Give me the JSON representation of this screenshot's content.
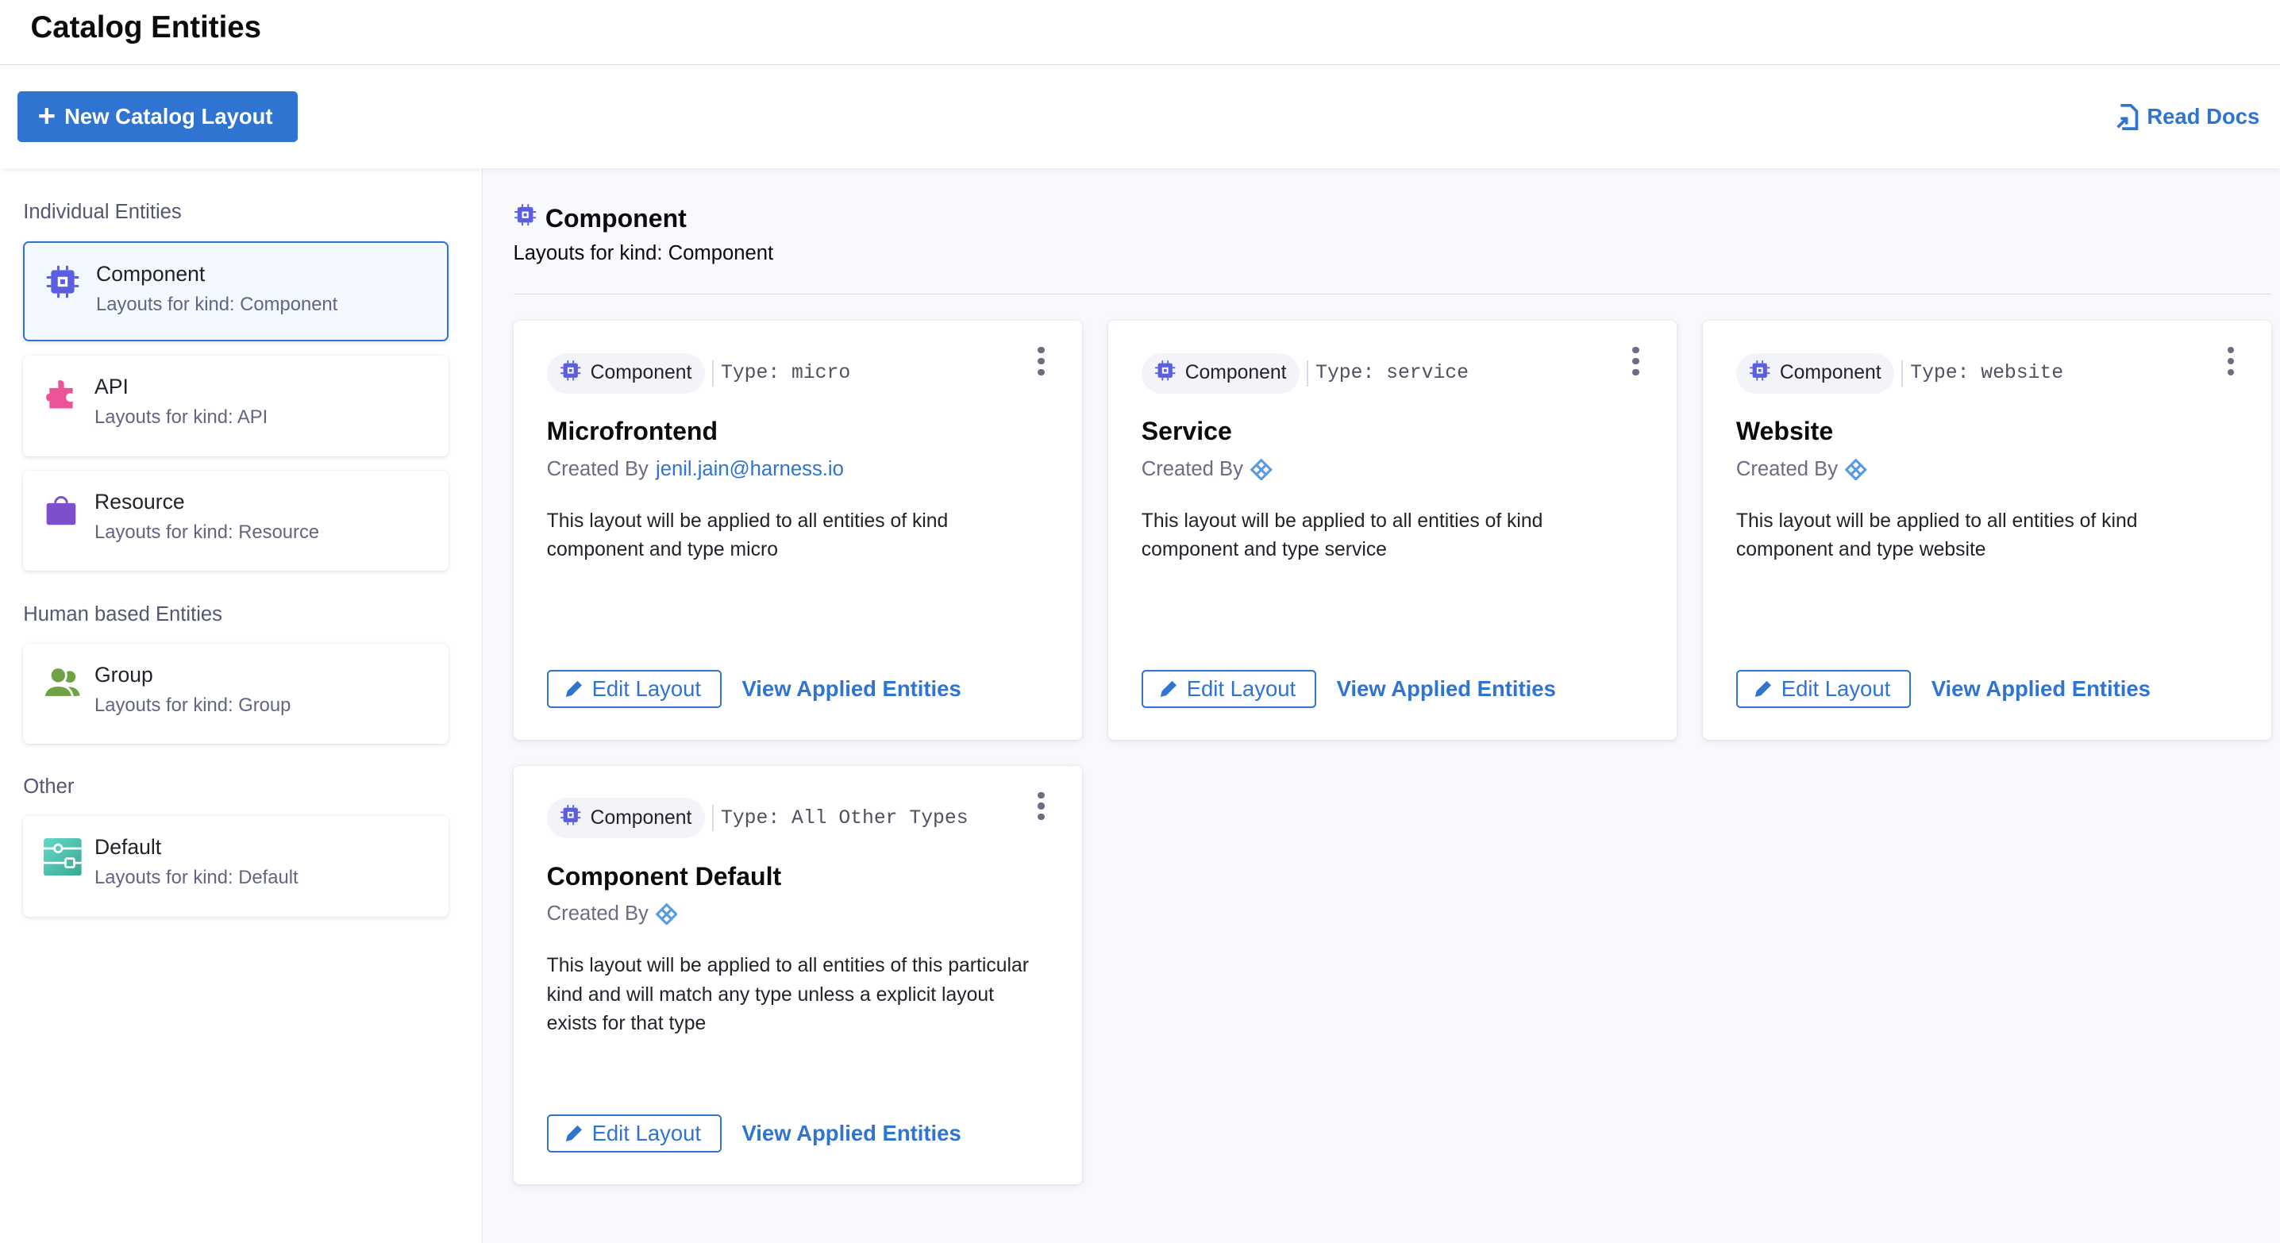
{
  "page": {
    "title": "Catalog Entities"
  },
  "toolbar": {
    "new_label": "New Catalog Layout",
    "docs_label": "Read Docs"
  },
  "colors": {
    "accent": "#2f74d0",
    "component": "#5b5ee0",
    "api": "#ec5497",
    "resource": "#7c4fcc",
    "group": "#6fa243",
    "default": "#4fcfbf"
  },
  "sidebar": {
    "sections": [
      {
        "label": "Individual Entities",
        "items": [
          {
            "title": "Component",
            "subtitle": "Layouts for kind: Component",
            "icon": "chip-icon",
            "active": true
          },
          {
            "title": "API",
            "subtitle": "Layouts for kind: API",
            "icon": "puzzle-icon"
          },
          {
            "title": "Resource",
            "subtitle": "Layouts for kind: Resource",
            "icon": "bag-icon"
          }
        ]
      },
      {
        "label": "Human based Entities",
        "items": [
          {
            "title": "Group",
            "subtitle": "Layouts for kind: Group",
            "icon": "group-icon"
          }
        ]
      },
      {
        "label": "Other",
        "items": [
          {
            "title": "Default",
            "subtitle": "Layouts for kind: Default",
            "icon": "default-layout-icon"
          }
        ]
      }
    ]
  },
  "main": {
    "title": "Component",
    "subtitle": "Layouts for kind: Component",
    "cards": [
      {
        "kind": "Component",
        "type": "Type: micro",
        "title": "Microfrontend",
        "created_by": "Created By",
        "creator": "jenil.jain@harness.io",
        "description": "This layout will be applied to all entities of kind component and type micro",
        "edit": "Edit Layout",
        "view": "View Applied Entities"
      },
      {
        "kind": "Component",
        "type": "Type: service",
        "title": "Service",
        "created_by": "Created By",
        "creator": "",
        "description": "This layout will be applied to all entities of kind component and type service",
        "edit": "Edit Layout",
        "view": "View Applied Entities"
      },
      {
        "kind": "Component",
        "type": "Type: website",
        "title": "Website",
        "created_by": "Created By",
        "creator": "",
        "description": "This layout will be applied to all entities of kind component and type website",
        "edit": "Edit Layout",
        "view": "View Applied Entities"
      },
      {
        "kind": "Component",
        "type": "Type: All Other Types",
        "title": "Component Default",
        "created_by": "Created By",
        "creator": "",
        "description": "This layout will be applied to all entities of this particular kind and will match any type unless a explicit layout exists for that type",
        "edit": "Edit Layout",
        "view": "View Applied Entities"
      }
    ]
  }
}
